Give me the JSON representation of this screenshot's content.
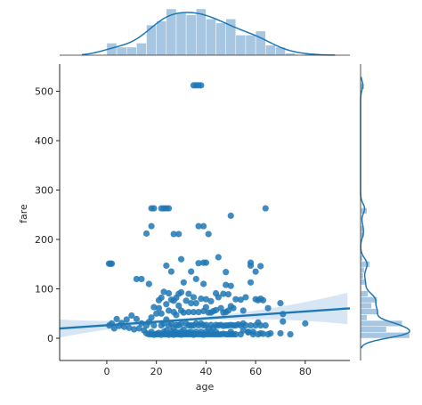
{
  "chart_data": {
    "type": "scatter",
    "title": "",
    "xlabel": "age",
    "ylabel": "fare",
    "xlim": [
      -19,
      98
    ],
    "ylim": [
      -45,
      555
    ],
    "xticks": [
      0,
      20,
      40,
      60,
      80
    ],
    "yticks": [
      0,
      100,
      200,
      300,
      400,
      500
    ],
    "grid": false,
    "colors": {
      "points": "#1f77b4",
      "hist_fill": "#a6c6e1",
      "line": "#1f77b4",
      "ci_band": "#c6dbef",
      "axis": "#262626"
    },
    "points": [
      [
        35,
        512
      ],
      [
        36,
        512
      ],
      [
        38,
        512
      ],
      [
        37,
        512
      ],
      [
        0.9,
        151
      ],
      [
        2,
        151
      ],
      [
        1.5,
        151
      ],
      [
        12,
        120
      ],
      [
        14,
        120
      ],
      [
        17,
        110
      ],
      [
        18,
        263
      ],
      [
        19,
        263
      ],
      [
        22,
        263
      ],
      [
        23,
        263
      ],
      [
        24,
        263
      ],
      [
        25,
        263
      ],
      [
        64,
        263
      ],
      [
        16,
        212
      ],
      [
        18,
        227
      ],
      [
        27,
        211
      ],
      [
        29,
        211
      ],
      [
        37,
        227
      ],
      [
        39,
        227
      ],
      [
        41,
        211
      ],
      [
        50,
        248
      ],
      [
        24,
        147
      ],
      [
        26,
        135
      ],
      [
        30,
        160
      ],
      [
        34,
        135
      ],
      [
        37,
        152
      ],
      [
        39,
        153
      ],
      [
        40,
        153
      ],
      [
        45,
        164
      ],
      [
        48,
        134
      ],
      [
        58,
        147
      ],
      [
        58,
        153
      ],
      [
        60,
        135
      ],
      [
        62,
        146
      ],
      [
        1,
        26
      ],
      [
        2,
        30
      ],
      [
        3,
        20
      ],
      [
        4,
        39
      ],
      [
        5,
        25
      ],
      [
        6,
        31
      ],
      [
        7,
        23
      ],
      [
        8,
        38
      ],
      [
        9,
        21
      ],
      [
        10,
        46
      ],
      [
        11,
        18
      ],
      [
        12,
        39
      ],
      [
        13,
        20
      ],
      [
        14,
        30
      ],
      [
        15,
        16
      ],
      [
        16,
        10
      ],
      [
        16,
        26
      ],
      [
        17,
        8
      ],
      [
        17,
        33
      ],
      [
        18,
        8
      ],
      [
        18,
        13
      ],
      [
        18,
        42
      ],
      [
        19,
        7
      ],
      [
        19,
        26
      ],
      [
        19,
        63
      ],
      [
        20,
        8
      ],
      [
        20,
        9
      ],
      [
        20,
        50
      ],
      [
        21,
        8
      ],
      [
        21,
        11
      ],
      [
        21,
        61
      ],
      [
        21,
        77
      ],
      [
        22,
        7
      ],
      [
        22,
        26
      ],
      [
        22,
        50
      ],
      [
        22,
        82
      ],
      [
        23,
        8
      ],
      [
        23,
        13
      ],
      [
        23,
        30
      ],
      [
        23,
        94
      ],
      [
        24,
        8
      ],
      [
        24,
        16
      ],
      [
        24,
        38
      ],
      [
        24,
        69
      ],
      [
        25,
        7
      ],
      [
        25,
        9
      ],
      [
        25,
        26
      ],
      [
        25,
        56
      ],
      [
        25,
        91
      ],
      [
        26,
        8
      ],
      [
        26,
        14
      ],
      [
        26,
        30
      ],
      [
        26,
        78
      ],
      [
        27,
        7
      ],
      [
        27,
        11
      ],
      [
        27,
        21
      ],
      [
        27,
        53
      ],
      [
        27,
        76
      ],
      [
        28,
        8
      ],
      [
        28,
        13
      ],
      [
        28,
        27
      ],
      [
        28,
        47
      ],
      [
        28,
        82
      ],
      [
        29,
        8
      ],
      [
        29,
        10
      ],
      [
        29,
        26
      ],
      [
        29,
        66
      ],
      [
        29,
        90
      ],
      [
        30,
        7
      ],
      [
        30,
        13
      ],
      [
        30,
        30
      ],
      [
        30,
        56
      ],
      [
        30,
        93
      ],
      [
        31,
        8
      ],
      [
        31,
        18
      ],
      [
        31,
        52
      ],
      [
        31,
        113
      ],
      [
        32,
        8
      ],
      [
        32,
        10
      ],
      [
        32,
        30
      ],
      [
        32,
        76
      ],
      [
        33,
        8
      ],
      [
        33,
        12
      ],
      [
        33,
        26
      ],
      [
        33,
        53
      ],
      [
        33,
        90
      ],
      [
        34,
        8
      ],
      [
        34,
        13
      ],
      [
        34,
        26
      ],
      [
        34,
        71
      ],
      [
        35,
        7
      ],
      [
        35,
        9
      ],
      [
        35,
        26
      ],
      [
        35,
        53
      ],
      [
        35,
        83
      ],
      [
        36,
        8
      ],
      [
        36,
        13
      ],
      [
        36,
        30
      ],
      [
        36,
        71
      ],
      [
        36,
        120
      ],
      [
        37,
        8
      ],
      [
        37,
        26
      ],
      [
        37,
        53
      ],
      [
        38,
        8
      ],
      [
        38,
        13
      ],
      [
        38,
        30
      ],
      [
        38,
        80
      ],
      [
        39,
        7
      ],
      [
        39,
        26
      ],
      [
        39,
        55
      ],
      [
        39,
        110
      ],
      [
        40,
        8
      ],
      [
        40,
        13
      ],
      [
        40,
        27
      ],
      [
        40,
        63
      ],
      [
        40,
        79
      ],
      [
        41,
        8
      ],
      [
        41,
        20
      ],
      [
        41,
        52
      ],
      [
        42,
        8
      ],
      [
        42,
        13
      ],
      [
        42,
        27
      ],
      [
        42,
        52
      ],
      [
        42,
        75
      ],
      [
        43,
        8
      ],
      [
        43,
        21
      ],
      [
        43,
        55
      ],
      [
        44,
        8
      ],
      [
        44,
        13
      ],
      [
        44,
        27
      ],
      [
        44,
        57
      ],
      [
        44,
        91
      ],
      [
        45,
        8
      ],
      [
        45,
        26
      ],
      [
        45,
        83
      ],
      [
        46,
        8
      ],
      [
        46,
        27
      ],
      [
        46,
        61
      ],
      [
        47,
        9
      ],
      [
        47,
        25
      ],
      [
        47,
        52
      ],
      [
        47,
        90
      ],
      [
        48,
        8
      ],
      [
        48,
        26
      ],
      [
        48,
        53
      ],
      [
        48,
        108
      ],
      [
        49,
        8
      ],
      [
        49,
        26
      ],
      [
        49,
        56
      ],
      [
        49,
        89
      ],
      [
        50,
        8
      ],
      [
        50,
        13
      ],
      [
        50,
        27
      ],
      [
        50,
        65
      ],
      [
        50,
        106
      ],
      [
        51,
        8
      ],
      [
        51,
        26
      ],
      [
        51,
        61
      ],
      [
        52,
        8
      ],
      [
        52,
        26
      ],
      [
        52,
        79
      ],
      [
        53,
        28
      ],
      [
        54,
        8
      ],
      [
        54,
        26
      ],
      [
        54,
        78
      ],
      [
        55,
        16
      ],
      [
        55,
        30
      ],
      [
        55,
        56
      ],
      [
        56,
        26
      ],
      [
        56,
        83
      ],
      [
        57,
        13
      ],
      [
        57,
        12
      ],
      [
        58,
        26
      ],
      [
        58,
        113
      ],
      [
        59,
        8
      ],
      [
        59,
        13
      ],
      [
        60,
        26
      ],
      [
        60,
        79
      ],
      [
        61,
        8
      ],
      [
        61,
        32
      ],
      [
        61,
        77
      ],
      [
        62,
        10
      ],
      [
        62,
        26
      ],
      [
        62,
        80
      ],
      [
        63,
        9
      ],
      [
        63,
        77
      ],
      [
        64,
        26
      ],
      [
        65,
        8
      ],
      [
        65,
        61
      ],
      [
        66,
        10
      ],
      [
        70,
        10
      ],
      [
        70,
        71
      ],
      [
        71,
        34
      ],
      [
        71,
        49
      ],
      [
        74,
        8
      ],
      [
        80,
        30
      ]
    ],
    "regression": {
      "x": [
        -19,
        98
      ],
      "y": [
        19.7,
        60.6
      ]
    }
  }
}
